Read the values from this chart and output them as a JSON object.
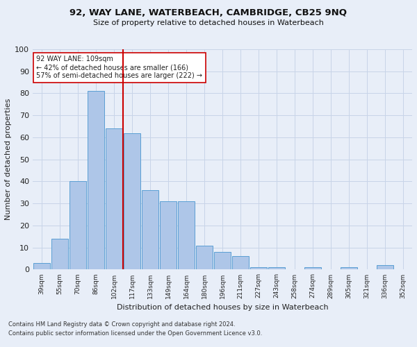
{
  "title": "92, WAY LANE, WATERBEACH, CAMBRIDGE, CB25 9NQ",
  "subtitle": "Size of property relative to detached houses in Waterbeach",
  "xlabel": "Distribution of detached houses by size in Waterbeach",
  "ylabel": "Number of detached properties",
  "categories": [
    "39sqm",
    "55sqm",
    "70sqm",
    "86sqm",
    "102sqm",
    "117sqm",
    "133sqm",
    "149sqm",
    "164sqm",
    "180sqm",
    "196sqm",
    "211sqm",
    "227sqm",
    "243sqm",
    "258sqm",
    "274sqm",
    "289sqm",
    "305sqm",
    "321sqm",
    "336sqm",
    "352sqm"
  ],
  "values": [
    3,
    14,
    40,
    81,
    64,
    62,
    36,
    31,
    31,
    11,
    8,
    6,
    1,
    1,
    0,
    1,
    0,
    1,
    0,
    2,
    0
  ],
  "bar_color": "#aec6e8",
  "bar_edge_color": "#5a9fd4",
  "vline_x": 4.5,
  "vline_color": "#cc0000",
  "annotation_line1": "92 WAY LANE: 109sqm",
  "annotation_line2": "← 42% of detached houses are smaller (166)",
  "annotation_line3": "57% of semi-detached houses are larger (222) →",
  "annotation_box_color": "#ffffff",
  "annotation_box_edge": "#cc0000",
  "ylim": [
    0,
    100
  ],
  "yticks": [
    0,
    10,
    20,
    30,
    40,
    50,
    60,
    70,
    80,
    90,
    100
  ],
  "grid_color": "#c8d4e8",
  "bg_color": "#e8eef8",
  "footnote1": "Contains HM Land Registry data © Crown copyright and database right 2024.",
  "footnote2": "Contains public sector information licensed under the Open Government Licence v3.0."
}
